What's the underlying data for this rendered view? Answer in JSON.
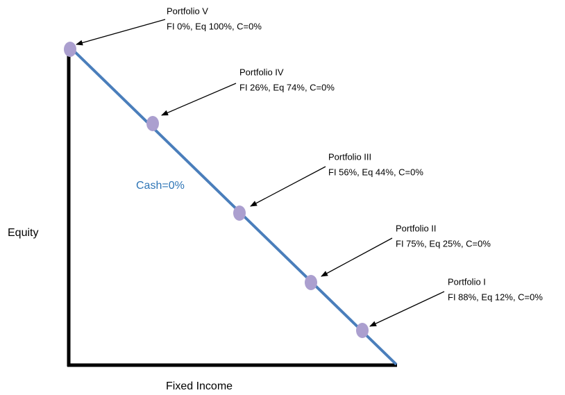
{
  "labels": {
    "cash": "Cash=0%",
    "y_axis": "Equity",
    "x_axis": "Fixed Income"
  },
  "portfolios": [
    {
      "name": "Portfolio V",
      "detail": "FI 0%, Eq 100%, C=0%"
    },
    {
      "name": "Portfolio IV",
      "detail": "FI 26%, Eq 74%, C=0%"
    },
    {
      "name": "Portfolio III",
      "detail": "FI 56%, Eq 44%, C=0%"
    },
    {
      "name": "Portfolio II",
      "detail": "FI 75%, Eq 25%, C=0%"
    },
    {
      "name": "Portfolio I",
      "detail": "FI 88%, Eq 12%, C=0%"
    }
  ]
}
